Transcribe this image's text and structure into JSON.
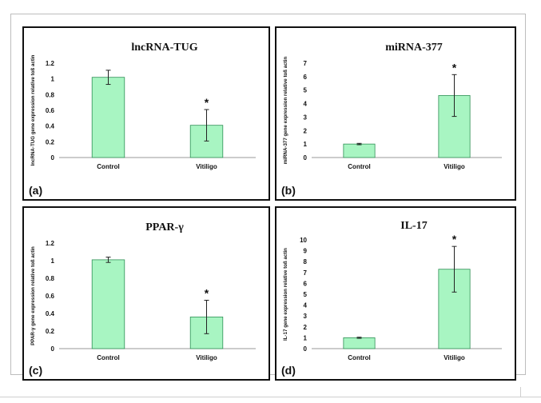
{
  "chart_data": [
    {
      "type": "bar",
      "panel_letter": "(a)",
      "title": "lncRNA-TUG",
      "ylabel": "lncRNA-TUG gene expression relative toß actin",
      "categories": [
        "Control",
        "Vitiligo"
      ],
      "values": [
        1.02,
        0.41
      ],
      "errors": [
        0.09,
        0.2
      ],
      "annotations": [
        "",
        "*"
      ],
      "ylim": [
        0,
        1.2
      ],
      "yticks": [
        "0",
        "0.2",
        "0.4",
        "0.6",
        "0.8",
        "1",
        "1.2"
      ],
      "grid": false
    },
    {
      "type": "bar",
      "panel_letter": "(b)",
      "title": "miRNA-377",
      "ylabel": "miRNA-377 gene expression relative toß actin",
      "categories": [
        "Control",
        "Vitiligo"
      ],
      "values": [
        1.0,
        4.6
      ],
      "errors": [
        0.05,
        1.55
      ],
      "annotations": [
        "",
        "*"
      ],
      "ylim": [
        0,
        7
      ],
      "yticks": [
        "0",
        "1",
        "2",
        "3",
        "4",
        "5",
        "6",
        "7"
      ],
      "grid": false
    },
    {
      "type": "bar",
      "panel_letter": "(c)",
      "title": "PPAR-γ",
      "ylabel": "PPAR-γ gene expression relative toß actin",
      "categories": [
        "Control",
        "Vitiligo"
      ],
      "values": [
        1.01,
        0.36
      ],
      "errors": [
        0.03,
        0.19
      ],
      "annotations": [
        "",
        "*"
      ],
      "ylim": [
        0,
        1.2
      ],
      "yticks": [
        "0",
        "0.2",
        "0.4",
        "0.6",
        "0.8",
        "1",
        "1.2"
      ],
      "grid": false
    },
    {
      "type": "bar",
      "panel_letter": "(d)",
      "title": "IL-17",
      "ylabel": "IL-17 gene expression relative toß actin",
      "categories": [
        "Control",
        "Vitiligo"
      ],
      "values": [
        1.0,
        7.3
      ],
      "errors": [
        0.05,
        2.1
      ],
      "annotations": [
        "",
        "*"
      ],
      "ylim": [
        0,
        10
      ],
      "yticks": [
        "0",
        "1",
        "2",
        "3",
        "4",
        "5",
        "6",
        "7",
        "8",
        "9",
        "10"
      ],
      "grid": false
    }
  ],
  "colors": {
    "bar_fill": "#a8f5c2",
    "bar_stroke": "#2f8f55",
    "axis": "#999999",
    "text": "#111111"
  }
}
